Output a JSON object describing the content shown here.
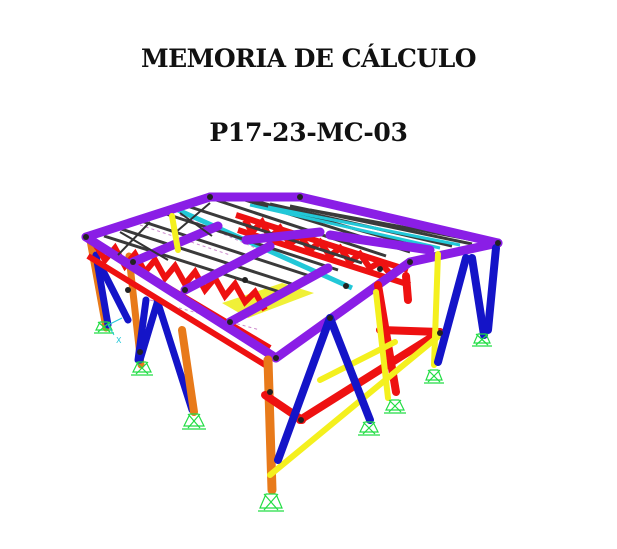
{
  "document": {
    "title": "MEMORIA DE CÁLCULO",
    "code": "P17-23-MC-03"
  },
  "figure": {
    "description_icon": "structural-steel-frame-3d-model",
    "axis_label": "X",
    "colors": {
      "purple": "#8a1ee6",
      "red": "#ee1111",
      "blue": "#1414c8",
      "yellow": "#f4f01e",
      "orange": "#e87a1a",
      "cyan": "#22c8d8",
      "dark_gray": "#3a3a3a",
      "support_green": "#22dd44",
      "node": "#222222"
    }
  }
}
